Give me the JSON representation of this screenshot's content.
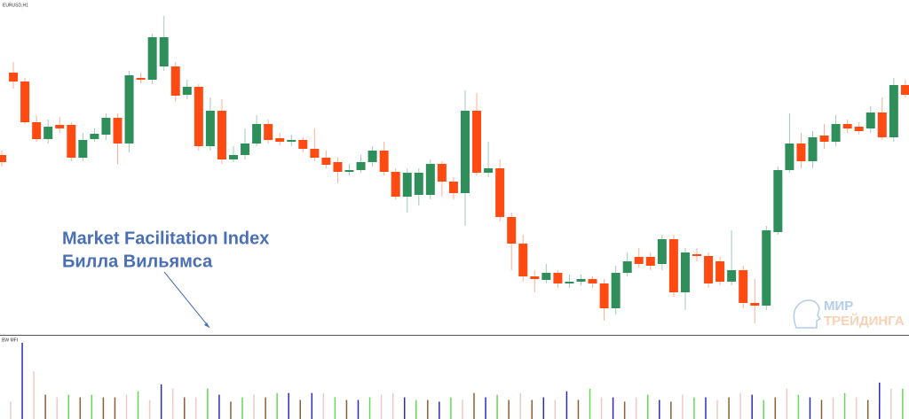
{
  "chart_data": [
    {
      "type": "candlestick",
      "title": "EURUSD,H1",
      "annotation": [
        "Market Facilitation Index",
        "Билла Вильямса"
      ],
      "up_color": "#2f8f5b",
      "down_color": "#ff4a12",
      "ylim": [
        22,
        400
      ],
      "ohlc": [
        [
          225,
          230,
          212,
          217
        ],
        [
          318,
          330,
          300,
          308
        ],
        [
          308,
          312,
          260,
          262
        ],
        [
          262,
          270,
          240,
          243
        ],
        [
          243,
          265,
          238,
          257
        ],
        [
          259,
          268,
          250,
          255
        ],
        [
          259,
          262,
          218,
          222
        ],
        [
          222,
          250,
          218,
          242
        ],
        [
          243,
          255,
          240,
          249
        ],
        [
          248,
          272,
          242,
          267
        ],
        [
          267,
          272,
          215,
          238
        ],
        [
          238,
          320,
          228,
          315
        ],
        [
          312,
          318,
          306,
          310
        ],
        [
          310,
          362,
          305,
          358
        ],
        [
          325,
          382,
          320,
          358
        ],
        [
          325,
          330,
          285,
          292
        ],
        [
          293,
          310,
          288,
          302
        ],
        [
          302,
          305,
          230,
          235
        ],
        [
          235,
          290,
          230,
          275
        ],
        [
          275,
          288,
          215,
          220
        ],
        [
          220,
          235,
          217,
          225
        ],
        [
          225,
          255,
          220,
          238
        ],
        [
          238,
          270,
          235,
          260
        ],
        [
          260,
          265,
          238,
          242
        ],
        [
          244,
          250,
          236,
          240
        ],
        [
          240,
          248,
          235,
          242
        ],
        [
          242,
          245,
          228,
          232
        ],
        [
          232,
          255,
          218,
          222
        ],
        [
          222,
          230,
          210,
          214
        ],
        [
          217,
          222,
          193,
          206
        ],
        [
          206,
          215,
          202,
          208
        ],
        [
          208,
          225,
          205,
          217
        ],
        [
          217,
          235,
          212,
          230
        ],
        [
          230,
          240,
          202,
          206
        ],
        [
          206,
          210,
          175,
          178
        ],
        [
          178,
          210,
          160,
          205
        ],
        [
          180,
          210,
          168,
          205
        ],
        [
          180,
          220,
          175,
          215
        ],
        [
          215,
          218,
          178,
          195
        ],
        [
          195,
          200,
          175,
          182
        ],
        [
          182,
          298,
          145,
          275
        ],
        [
          275,
          295,
          202,
          205
        ],
        [
          205,
          240,
          200,
          210
        ],
        [
          210,
          220,
          150,
          155
        ],
        [
          155,
          160,
          95,
          125
        ],
        [
          125,
          135,
          82,
          88
        ],
        [
          88,
          95,
          70,
          85
        ],
        [
          84,
          102,
          80,
          92
        ],
        [
          92,
          95,
          75,
          80
        ],
        [
          80,
          90,
          75,
          82
        ],
        [
          82,
          90,
          78,
          85
        ],
        [
          85,
          88,
          75,
          80
        ],
        [
          80,
          85,
          38,
          52
        ],
        [
          52,
          100,
          45,
          92
        ],
        [
          92,
          115,
          88,
          105
        ],
        [
          110,
          120,
          98,
          102
        ],
        [
          110,
          115,
          95,
          100
        ],
        [
          102,
          135,
          95,
          130
        ],
        [
          130,
          135,
          65,
          70
        ],
        [
          70,
          120,
          50,
          115
        ],
        [
          113,
          120,
          105,
          111
        ],
        [
          111,
          115,
          75,
          80
        ],
        [
          105,
          110,
          78,
          82
        ],
        [
          82,
          140,
          78,
          95
        ],
        [
          95,
          100,
          52,
          58
        ],
        [
          58,
          85,
          35,
          55
        ],
        [
          55,
          145,
          50,
          140
        ],
        [
          138,
          212,
          135,
          208
        ],
        [
          208,
          272,
          205,
          238
        ],
        [
          238,
          250,
          210,
          218
        ],
        [
          218,
          252,
          210,
          245
        ],
        [
          247,
          260,
          232,
          240
        ],
        [
          240,
          270,
          235,
          260
        ],
        [
          260,
          265,
          250,
          255
        ],
        [
          257,
          262,
          248,
          252
        ],
        [
          255,
          280,
          250,
          273
        ],
        [
          273,
          290,
          242,
          245
        ],
        [
          245,
          312,
          240,
          304
        ],
        [
          304,
          310,
          290,
          293
        ]
      ]
    },
    {
      "type": "bar",
      "title": "BW MFI",
      "ylim": [
        0,
        95
      ],
      "values": [
        20,
        88,
        55,
        28,
        25,
        28,
        25,
        28,
        25,
        25,
        28,
        32,
        22,
        40,
        35,
        25,
        25,
        35,
        28,
        20,
        25,
        28,
        25,
        30,
        30,
        22,
        30,
        30,
        25,
        22,
        22,
        25,
        28,
        30,
        25,
        22,
        22,
        20,
        25,
        22,
        30,
        25,
        28,
        22,
        30,
        22,
        25,
        22,
        32,
        22,
        35,
        25,
        25,
        20,
        25,
        28,
        22,
        20,
        28,
        25,
        25,
        22,
        25,
        30,
        28,
        22,
        25,
        35,
        28,
        25,
        22,
        25,
        30,
        25,
        22,
        42,
        35,
        35,
        28
      ],
      "colors": [
        "#f0c8c8",
        "#2b2bb8",
        "#f0c8c8",
        "#8b5e34",
        "#f0c8c8",
        "#66d855",
        "#8b5e34",
        "#66d855",
        "#8b5e34",
        "#8b5e34",
        "#f0c8c8",
        "#66d855",
        "#f0c8c8",
        "#2b2bb8",
        "#f0c8c8",
        "#8b5e34",
        "#f0c8c8",
        "#66d855",
        "#2b2bb8",
        "#8b5e34",
        "#66d855",
        "#f0c8c8",
        "#8b5e34",
        "#66d855",
        "#2b2bb8",
        "#8b5e34",
        "#2b2bb8",
        "#f0c8c8",
        "#66d855",
        "#8b5e34",
        "#2b2bb8",
        "#66d855",
        "#f0c8c8",
        "#f0c8c8",
        "#2b2bb8",
        "#66d855",
        "#8b5e34",
        "#2b2bb8",
        "#66d855",
        "#f0c8c8",
        "#8b5e34",
        "#2b2bb8",
        "#66d855",
        "#8b5e34",
        "#f0c8c8",
        "#8b5e34",
        "#2b2bb8",
        "#f0c8c8",
        "#2b2bb8",
        "#8b5e34",
        "#66d855",
        "#f0c8c8",
        "#2b2bb8",
        "#8b5e34",
        "#f0c8c8",
        "#66d855",
        "#2b2bb8",
        "#8b5e34",
        "#f0c8c8",
        "#66d855",
        "#2b2bb8",
        "#f0c8c8",
        "#8b5e34",
        "#f0c8c8",
        "#2b2bb8",
        "#66d855",
        "#8b5e34",
        "#f0c8c8",
        "#66d855",
        "#2b2bb8",
        "#8b5e34",
        "#f0c8c8",
        "#66d855",
        "#f0c8c8",
        "#8b5e34",
        "#2b2bb8",
        "#f0c8c8",
        "#66d855",
        "#2b2bb8"
      ]
    }
  ],
  "logo": {
    "line1": "МИР",
    "line2": "ТРЕЙДИНГА"
  }
}
